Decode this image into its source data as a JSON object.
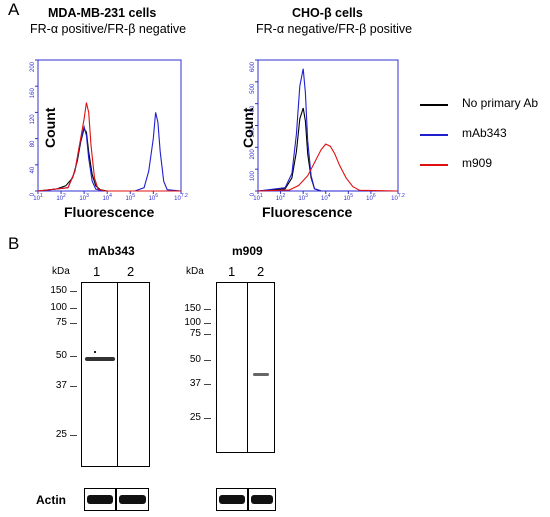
{
  "panelA": {
    "letter": "A",
    "left_plot": {
      "title": "MDA-MB-231 cells",
      "subtitle": "FR-α positive/FR-β negative",
      "ylabel": "Count",
      "xlabel": "Fluorescence",
      "y_ticks": [
        "0",
        "40",
        "80",
        "120",
        "160",
        "200"
      ],
      "x_ticks": [
        "10^1",
        "10^2",
        "10^3",
        "10^4",
        "10^5",
        "10^6",
        "10^7.2"
      ]
    },
    "right_plot": {
      "title": "CHO-β cells",
      "subtitle": "FR-α negative/FR-β positive",
      "ylabel": "Count",
      "xlabel": "Fluorescence",
      "y_ticks": [
        "0",
        "100",
        "200",
        "300",
        "400",
        "500",
        "600"
      ],
      "x_ticks": [
        "10^1",
        "10^2",
        "10^3",
        "10^4",
        "10^5",
        "10^6",
        "10^7.2"
      ]
    },
    "legend": [
      {
        "label": "No primary Ab",
        "color": "#000000"
      },
      {
        "label": "mAb343",
        "color": "#1f1fd0"
      },
      {
        "label": "m909",
        "color": "#e01010"
      }
    ]
  },
  "panelB": {
    "letter": "B",
    "kda_label": "kDa",
    "left_blot": {
      "title": "mAb343",
      "lanes": [
        "1",
        "2"
      ],
      "markers": [
        "150",
        "100",
        "75",
        "50",
        "37",
        "25"
      ]
    },
    "right_blot": {
      "title": "m909",
      "lanes": [
        "1",
        "2"
      ],
      "markers": [
        "150",
        "100",
        "75",
        "50",
        "37",
        "25"
      ]
    },
    "actin_label": "Actin"
  },
  "chart_data": [
    {
      "type": "line",
      "title": "MDA-MB-231 cells",
      "subtitle": "FR-α positive/FR-β negative",
      "xlabel": "Fluorescence",
      "ylabel": "Count",
      "x_scale": "log",
      "xlim": [
        1,
        7.2
      ],
      "ylim": [
        0,
        200
      ],
      "series": [
        {
          "name": "No primary Ab",
          "color": "#000000",
          "x": [
            1.0,
            1.8,
            2.2,
            2.5,
            2.7,
            2.85,
            3.0,
            3.1,
            3.2,
            3.35,
            3.5,
            3.7,
            4.0,
            7.2
          ],
          "y": [
            0,
            3,
            8,
            20,
            45,
            75,
            95,
            90,
            60,
            25,
            8,
            2,
            0,
            0
          ]
        },
        {
          "name": "mAb343",
          "color": "#1f1fd0",
          "x": [
            1.0,
            2.3,
            2.6,
            2.8,
            3.0,
            3.1,
            3.2,
            3.35,
            3.5,
            3.8,
            5.2,
            5.6,
            5.8,
            6.0,
            6.1,
            6.2,
            6.3,
            6.45,
            6.6,
            7.2
          ],
          "y": [
            0,
            5,
            30,
            70,
            98,
            85,
            50,
            15,
            3,
            0,
            0,
            5,
            30,
            80,
            120,
            105,
            60,
            15,
            2,
            0
          ]
        },
        {
          "name": "m909",
          "color": "#e01010",
          "x": [
            1.0,
            2.3,
            2.6,
            2.8,
            3.0,
            3.1,
            3.2,
            3.3,
            3.45,
            3.6,
            3.9,
            7.2
          ],
          "y": [
            0,
            5,
            30,
            70,
            110,
            135,
            120,
            70,
            20,
            3,
            0,
            0
          ]
        }
      ]
    },
    {
      "type": "line",
      "title": "CHO-β cells",
      "subtitle": "FR-α negative/FR-β positive",
      "xlabel": "Fluorescence",
      "ylabel": "Count",
      "x_scale": "log",
      "xlim": [
        1,
        7.2
      ],
      "ylim": [
        0,
        600
      ],
      "series": [
        {
          "name": "No primary Ab",
          "color": "#000000",
          "x": [
            1.0,
            2.2,
            2.5,
            2.7,
            2.85,
            3.0,
            3.1,
            3.2,
            3.35,
            3.5,
            3.8,
            7.2
          ],
          "y": [
            0,
            10,
            60,
            180,
            330,
            380,
            320,
            170,
            60,
            10,
            0,
            0
          ]
        },
        {
          "name": "mAb343",
          "color": "#1f1fd0",
          "x": [
            1.0,
            2.2,
            2.5,
            2.7,
            2.85,
            3.0,
            3.1,
            3.2,
            3.35,
            3.5,
            3.8,
            7.2
          ],
          "y": [
            0,
            15,
            80,
            260,
            480,
            560,
            450,
            230,
            70,
            10,
            0,
            0
          ]
        },
        {
          "name": "m909",
          "color": "#e01010",
          "x": [
            1.0,
            2.4,
            2.8,
            3.2,
            3.5,
            3.8,
            4.0,
            4.2,
            4.4,
            4.6,
            4.9,
            5.2,
            5.5,
            7.2
          ],
          "y": [
            0,
            5,
            25,
            70,
            130,
            190,
            215,
            205,
            170,
            120,
            60,
            20,
            3,
            0
          ]
        }
      ]
    }
  ]
}
